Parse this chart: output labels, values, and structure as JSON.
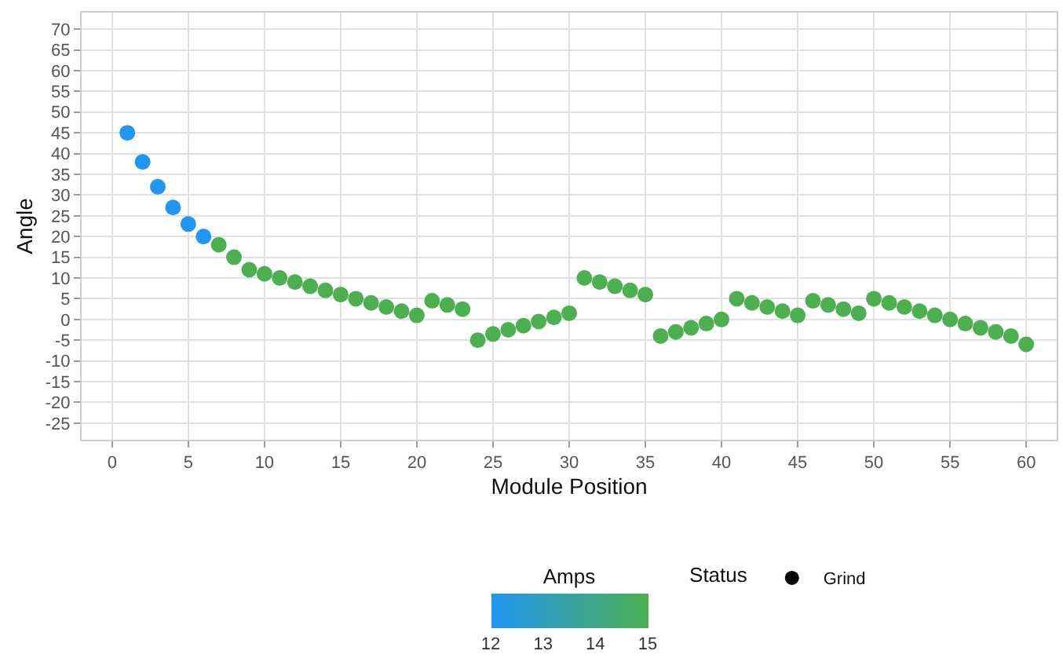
{
  "chart_data": {
    "type": "scatter",
    "xlabel": "Module Position",
    "ylabel": "Angle",
    "clabel": "Amps",
    "legend_title": "Status",
    "x": [
      1,
      2,
      3,
      4,
      5,
      6,
      7,
      8,
      9,
      10,
      11,
      12,
      13,
      14,
      15,
      16,
      17,
      18,
      19,
      20,
      21,
      22,
      23,
      24,
      25,
      26,
      27,
      28,
      29,
      30,
      31,
      32,
      33,
      34,
      35,
      36,
      37,
      38,
      39,
      40,
      41,
      42,
      43,
      44,
      45,
      46,
      47,
      48,
      49,
      50,
      51,
      52,
      53,
      54,
      55,
      56,
      57,
      58,
      59,
      60
    ],
    "series": [
      {
        "name": "Grind",
        "values": [
          45,
          38,
          32,
          27,
          23,
          20,
          18,
          15,
          12,
          11,
          10,
          9,
          8,
          7,
          6,
          5,
          4,
          3,
          2,
          1,
          4.5,
          3.5,
          2.5,
          -5,
          -3.5,
          -2.5,
          -1.5,
          -0.5,
          0.5,
          1.5,
          10,
          9,
          8,
          7,
          6,
          -4,
          -3,
          -2,
          -1,
          0,
          5,
          4,
          3,
          2,
          1,
          4.5,
          3.5,
          2.5,
          1.5,
          5,
          4,
          3,
          2,
          1,
          0,
          -1,
          -2,
          -3,
          -4,
          -6
        ],
        "cvalues": [
          12,
          12,
          12,
          12,
          12,
          12,
          15,
          15,
          15,
          15,
          15,
          15,
          15,
          15,
          15,
          15,
          15,
          15,
          15,
          15,
          15,
          15,
          15,
          15,
          15,
          15,
          15,
          15,
          15,
          15,
          15,
          15,
          15,
          15,
          15,
          15,
          15,
          15,
          15,
          15,
          15,
          15,
          15,
          15,
          15,
          15,
          15,
          15,
          15,
          15,
          15,
          15,
          15,
          15,
          15,
          15,
          15,
          15,
          15,
          15
        ]
      }
    ],
    "clim": [
      12,
      15
    ],
    "cticks": [
      12,
      13,
      14,
      15
    ],
    "xlim": [
      -2,
      62
    ],
    "xticks": [
      0,
      5,
      10,
      15,
      20,
      25,
      30,
      35,
      40,
      45,
      50,
      55,
      60
    ],
    "ylim": [
      -29,
      74
    ],
    "yticks": [
      -25,
      -20,
      -15,
      -10,
      -5,
      0,
      5,
      10,
      15,
      20,
      25,
      30,
      35,
      40,
      45,
      50,
      55,
      60,
      65,
      70
    ],
    "grid": true,
    "legend": "bottom",
    "marker": "circle"
  }
}
